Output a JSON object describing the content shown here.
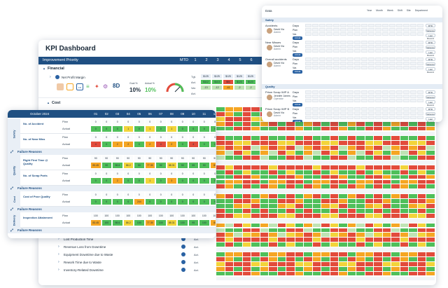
{
  "main": {
    "title": "KPI Dashboard",
    "bar_title": "Improvement Priority",
    "bar_cols": [
      "MTD",
      "1",
      "2",
      "3",
      "4",
      "5",
      "6"
    ],
    "section_financial": "Financial",
    "section_cost": "Cost",
    "kpi_net_profit": "Net Profit Margin",
    "metric_values": [
      "10%",
      "10%"
    ],
    "metric_labels": [
      "Goal %",
      "Actual %"
    ],
    "badge_values": [
      "8D"
    ],
    "side_rows": [
      "Tgt.",
      "Act.",
      "Var.",
      "Act."
    ],
    "top_values": [
      [
        "$125",
        "$125",
        "$125",
        "$125",
        "$125"
      ],
      [
        "$112",
        "$113",
        "$84",
        "$123",
        "$123"
      ],
      [
        "-13",
        "-12",
        "-41",
        "-2",
        "-2"
      ]
    ],
    "cost_kpis": [
      "Lost Production Time",
      "Revenue Loss from Downtime",
      "Equipment Downtime due to Waste",
      "Rework Time due to Waste",
      "Inventory-Related Downtime"
    ],
    "cost_row_label": "Act."
  },
  "overlay": {
    "header": "October 2024",
    "day_cols": [
      "01",
      "02",
      "03",
      "04",
      "05",
      "06",
      "07",
      "08",
      "09",
      "10",
      "11",
      "12"
    ],
    "groups": [
      "Safety",
      "Quality",
      "Cost",
      "Delivery"
    ],
    "kpis": [
      {
        "name": "No. of Accident",
        "plan": [
          "0",
          "0",
          "0",
          "0",
          "0",
          "0",
          "0",
          "0",
          "0",
          "0",
          "0",
          "0"
        ],
        "actual": [
          "0",
          "0",
          "0",
          "1",
          "0",
          "1",
          "0",
          "1",
          "0",
          "0",
          "0",
          "0"
        ]
      },
      {
        "name": "No. of Near Miss",
        "plan": [
          "0",
          "0",
          "0",
          "0",
          "0",
          "0",
          "0",
          "0",
          "0",
          "0",
          "0",
          "0"
        ],
        "actual": [
          "4",
          "0",
          "2",
          "2",
          "0",
          "2",
          "4",
          "2",
          "0",
          "4",
          "0",
          "0"
        ]
      },
      {
        "name": "Right First Time @ Quality",
        "plan": [
          "90",
          "90",
          "90",
          "90",
          "90",
          "90",
          "90",
          "90",
          "90",
          "90",
          "90",
          "90"
        ],
        "actual": [
          "83.45",
          "90",
          "98.6",
          "86.2",
          "90",
          "77.35",
          "92",
          "88.31",
          "90",
          "95",
          "90",
          "84"
        ]
      },
      {
        "name": "No. of Scrap Parts",
        "plan": [
          "0",
          "0",
          "0",
          "0",
          "0",
          "0",
          "0",
          "0",
          "0",
          "0",
          "0",
          "0"
        ],
        "actual": [
          "0",
          "0",
          "2",
          "0",
          "0",
          "1",
          "0",
          "3",
          "0",
          "0",
          "0",
          "0"
        ]
      },
      {
        "name": "Cost of Poor Quality",
        "plan": [
          "0",
          "0",
          "0",
          "0",
          "0",
          "0",
          "0",
          "0",
          "0",
          "0",
          "0",
          "0"
        ],
        "actual": [
          "0",
          "0",
          "0",
          "0",
          "244",
          "0",
          "0",
          "0",
          "0",
          "0",
          "0",
          "0"
        ]
      },
      {
        "name": "Inspection Attainment",
        "plan": [
          "100",
          "100",
          "100",
          "100",
          "100",
          "100",
          "100",
          "100",
          "100",
          "100",
          "100",
          "100"
        ],
        "actual": [
          "83.45",
          "100",
          "98.6",
          "86.2",
          "100",
          "77.35",
          "100",
          "88.31",
          "100",
          "95",
          "100",
          "84"
        ]
      }
    ],
    "row_plan": "Plan",
    "row_actual": "Actual",
    "failure": "Failure Reasons"
  },
  "datacard": {
    "title": "Data",
    "filters": [
      "Year",
      "Month",
      "Week",
      "Shift",
      "Site",
      "Department"
    ],
    "sections": [
      "Safety",
      "Quality"
    ],
    "rows": [
      {
        "kpi": "Accidents",
        "freq": "Days",
        "person": "David Via",
        "role": "Admin"
      },
      {
        "kpi": "Near Misses",
        "freq": "Days",
        "person": "David Via",
        "role": "Admin"
      },
      {
        "kpi": "Overall accidents",
        "freq": "Days",
        "person": "David Via",
        "role": "Admin"
      },
      {
        "kpi": "Prism Scrap WIP A",
        "freq": "Days",
        "person": "Jennifer James",
        "role": "Operator"
      },
      {
        "kpi": "Prism Scrap WIP B",
        "freq": "Days",
        "person": "David Via",
        "role": "Admin"
      }
    ],
    "row_plan": "Plan",
    "row_actual": "Actual",
    "row_var": "Var.",
    "btn_labels": [
      "MTD",
      "Variance",
      "Last Record"
    ]
  },
  "colors": {
    "navy": "#1f4f82",
    "green": "#4fbf5a",
    "yellow": "#f2d43a",
    "orange": "#f5a623",
    "red": "#e24b3b"
  }
}
